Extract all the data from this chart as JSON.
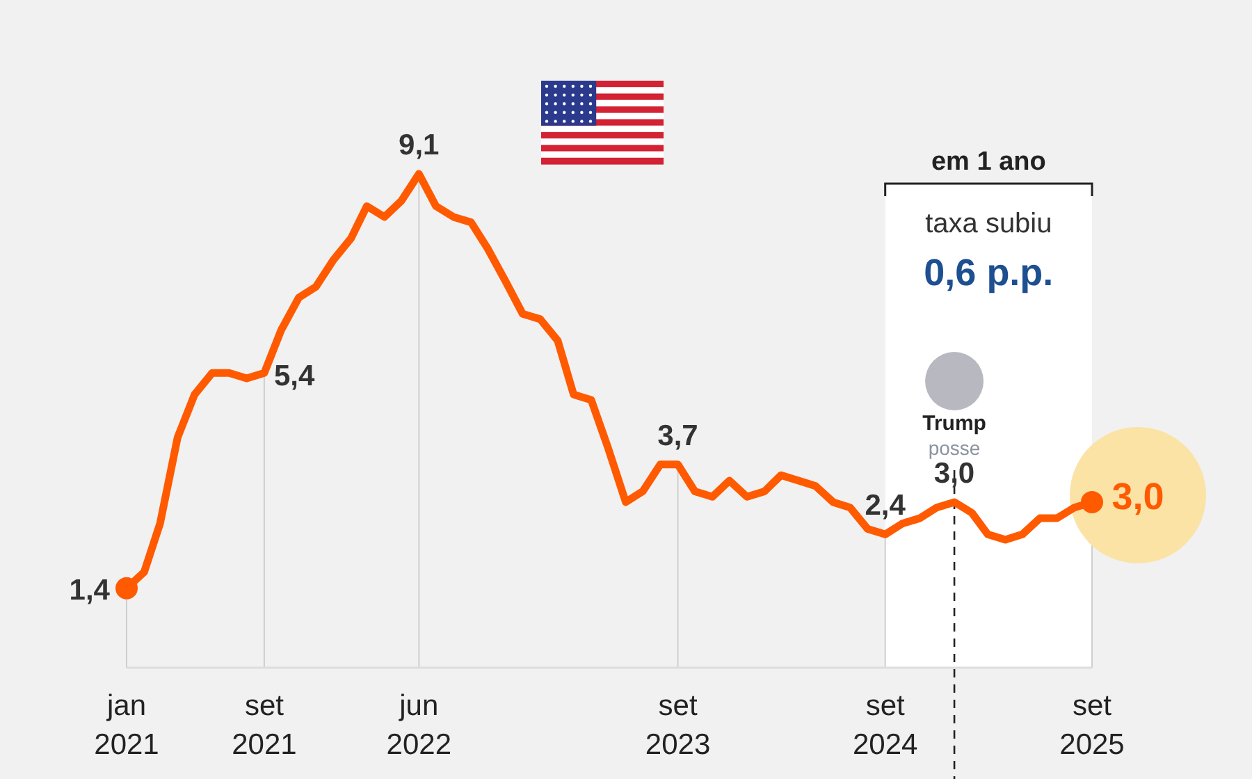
{
  "chart_data": {
    "type": "line",
    "x": [
      "2021-01",
      "2021-02",
      "2021-03",
      "2021-04",
      "2021-05",
      "2021-06",
      "2021-07",
      "2021-08",
      "2021-09",
      "2021-10",
      "2021-11",
      "2021-12",
      "2022-01",
      "2022-02",
      "2022-03",
      "2022-04",
      "2022-05",
      "2022-06",
      "2022-07",
      "2022-08",
      "2022-09",
      "2022-10",
      "2022-11",
      "2022-12",
      "2023-01",
      "2023-02",
      "2023-03",
      "2023-04",
      "2023-05",
      "2023-06",
      "2023-07",
      "2023-08",
      "2023-09",
      "2023-10",
      "2023-11",
      "2023-12",
      "2024-01",
      "2024-02",
      "2024-03",
      "2024-04",
      "2024-05",
      "2024-06",
      "2024-07",
      "2024-08",
      "2024-09",
      "2024-10",
      "2024-11",
      "2024-12",
      "2025-01",
      "2025-02",
      "2025-03",
      "2025-04",
      "2025-05",
      "2025-06",
      "2025-07",
      "2025-08",
      "2025-09"
    ],
    "series": [
      {
        "color": "#ff5a00",
        "values": [
          1.4,
          1.7,
          2.6,
          4.2,
          5.0,
          5.4,
          5.4,
          5.3,
          5.4,
          6.2,
          6.8,
          7.0,
          7.5,
          7.9,
          8.5,
          8.3,
          8.6,
          9.1,
          8.5,
          8.3,
          8.2,
          7.7,
          7.1,
          6.5,
          6.4,
          6.0,
          5.0,
          4.9,
          4.0,
          3.0,
          3.2,
          3.7,
          3.7,
          3.2,
          3.1,
          3.4,
          3.1,
          3.2,
          3.5,
          3.4,
          3.3,
          3.0,
          2.9,
          2.5,
          2.4,
          2.6,
          2.7,
          2.9,
          3.0,
          2.8,
          2.4,
          2.3,
          2.4,
          2.7,
          2.7,
          2.9,
          3.0
        ],
        "value_labels": [
          "1,4",
          null,
          null,
          null,
          null,
          null,
          null,
          null,
          "5,4",
          null,
          null,
          null,
          null,
          null,
          null,
          null,
          null,
          "9,1",
          null,
          null,
          null,
          null,
          null,
          null,
          null,
          null,
          null,
          null,
          null,
          null,
          null,
          null,
          "3,7",
          null,
          null,
          null,
          null,
          null,
          null,
          null,
          null,
          null,
          null,
          null,
          "2,4",
          null,
          null,
          null,
          "3,0",
          null,
          null,
          null,
          null,
          null,
          null,
          null,
          "3,0"
        ]
      }
    ],
    "xlim": [
      "2021-01",
      "2025-09"
    ],
    "xticks": [
      {
        "value": "2021-01",
        "label": "jan\n2021"
      },
      {
        "value": "2021-09",
        "label": "set\n2021"
      },
      {
        "value": "2022-06",
        "label": "jun\n2022"
      },
      {
        "value": "2023-09",
        "label": "set\n2023"
      },
      {
        "value": "2024-09",
        "label": "set\n2024"
      },
      {
        "value": "2025-09",
        "label": "set\n2025"
      }
    ],
    "tick_labels": "x",
    "grid": "x",
    "line_style": "solid",
    "bands": [
      {
        "axis": "x",
        "from": "2024-09",
        "to": "2025-09",
        "label": "em 1 ano",
        "color": "#ffffff"
      }
    ],
    "ref_lines": [
      {
        "axis": "x",
        "value": "2025-01",
        "label": "Trump",
        "line_style": "dashed",
        "color": "#222222"
      }
    ],
    "annotations": [
      "taxa subiu",
      "0,6 p.p.",
      "posse"
    ]
  }
}
